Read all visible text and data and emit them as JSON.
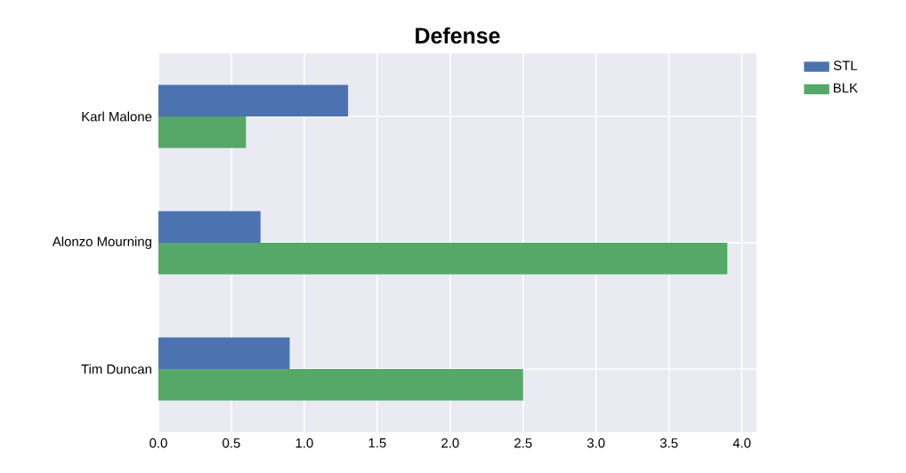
{
  "chart_data": {
    "type": "bar",
    "orientation": "horizontal",
    "title": "Defense",
    "categories": [
      "Karl Malone",
      "Alonzo Mourning",
      "Tim Duncan"
    ],
    "series": [
      {
        "name": "STL",
        "color": "#4c72b0",
        "values": [
          1.3,
          0.7,
          0.9
        ]
      },
      {
        "name": "BLK",
        "color": "#55a868",
        "values": [
          0.6,
          3.9,
          2.5
        ]
      }
    ],
    "xlim": [
      0,
      4.1
    ],
    "xticks": [
      {
        "value": 0,
        "label": "0.0"
      },
      {
        "value": 0.5,
        "label": "0.5"
      },
      {
        "value": 1,
        "label": "1.0"
      },
      {
        "value": 1.5,
        "label": "1.5"
      },
      {
        "value": 2,
        "label": "2.0"
      },
      {
        "value": 2.5,
        "label": "2.5"
      },
      {
        "value": 3,
        "label": "3.0"
      },
      {
        "value": 3.5,
        "label": "3.5"
      },
      {
        "value": 4,
        "label": "4.0"
      }
    ],
    "grid": true,
    "legend": "top right"
  }
}
